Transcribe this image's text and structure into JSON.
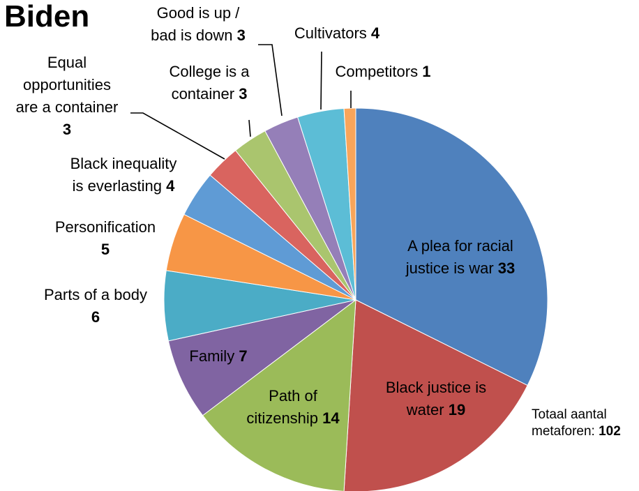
{
  "chart_data": {
    "type": "pie",
    "title": "Biden",
    "slices": [
      {
        "label": "A plea for racial justice is war",
        "value": 33,
        "color": "#4f81bd"
      },
      {
        "label": "Black justice is water",
        "value": 19,
        "color": "#c0504d"
      },
      {
        "label": "Path of citizenship",
        "value": 14,
        "color": "#9bbb59"
      },
      {
        "label": "Family",
        "value": 7,
        "color": "#8064a2"
      },
      {
        "label": "Parts of a body",
        "value": 6,
        "color": "#4bacc6"
      },
      {
        "label": "Personification",
        "value": 5,
        "color": "#f79646"
      },
      {
        "label": "Black inequality is everlasting",
        "value": 4,
        "color": "#5f9bd5"
      },
      {
        "label": "Equal opportunities are a container",
        "value": 3,
        "color": "#d9645f"
      },
      {
        "label": "College is a container",
        "value": 3,
        "color": "#aac56e"
      },
      {
        "label": "Good is up / bad is down",
        "value": 3,
        "color": "#957fb8"
      },
      {
        "label": "Cultivators",
        "value": 4,
        "color": "#5cbdd6"
      },
      {
        "label": "Competitors",
        "value": 1,
        "color": "#f9a55a"
      }
    ],
    "total_label": "Totaal aantal metaforen:",
    "total": 102
  }
}
